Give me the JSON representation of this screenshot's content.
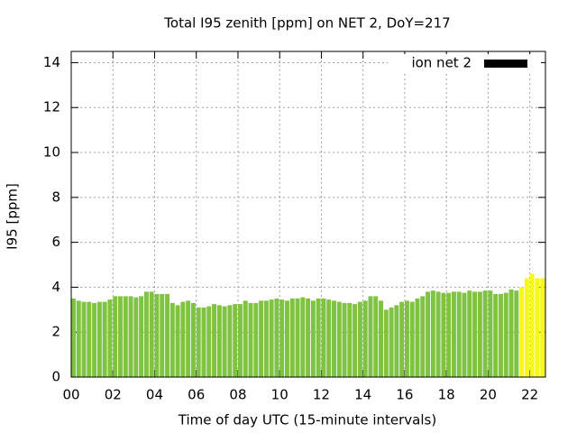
{
  "chart_data": {
    "type": "bar",
    "title": "Total I95 zenith [ppm] on NET 2, DoY=217",
    "xlabel": "Time of day UTC (15-minute intervals)",
    "ylabel": "I95 [ppm]",
    "legend": {
      "label": "ion net 2",
      "color": "#000000",
      "position": "top-right"
    },
    "x": [
      0,
      0.25,
      0.5,
      0.75,
      1,
      1.25,
      1.5,
      1.75,
      2,
      2.25,
      2.5,
      2.75,
      3,
      3.25,
      3.5,
      3.75,
      4,
      4.25,
      4.5,
      4.75,
      5,
      5.25,
      5.5,
      5.75,
      6,
      6.25,
      6.5,
      6.75,
      7,
      7.25,
      7.5,
      7.75,
      8,
      8.25,
      8.5,
      8.75,
      9,
      9.25,
      9.5,
      9.75,
      10,
      10.25,
      10.5,
      10.75,
      11,
      11.25,
      11.5,
      11.75,
      12,
      12.25,
      12.5,
      12.75,
      13,
      13.25,
      13.5,
      13.75,
      14,
      14.25,
      14.5,
      14.75,
      15,
      15.25,
      15.5,
      15.75,
      16,
      16.25,
      16.5,
      16.75,
      17,
      17.25,
      17.5,
      17.75,
      18,
      18.25,
      18.5,
      18.75,
      19,
      19.25,
      19.5,
      19.75,
      20,
      20.25,
      20.5,
      20.75,
      21,
      21.25,
      21.5,
      21.75,
      22,
      22.25,
      22.5
    ],
    "values": [
      3.5,
      3.4,
      3.35,
      3.35,
      3.3,
      3.35,
      3.35,
      3.45,
      3.6,
      3.6,
      3.6,
      3.6,
      3.55,
      3.6,
      3.8,
      3.8,
      3.7,
      3.7,
      3.7,
      3.3,
      3.2,
      3.35,
      3.4,
      3.3,
      3.1,
      3.1,
      3.15,
      3.25,
      3.2,
      3.15,
      3.2,
      3.25,
      3.25,
      3.4,
      3.3,
      3.3,
      3.4,
      3.4,
      3.45,
      3.5,
      3.45,
      3.4,
      3.5,
      3.5,
      3.55,
      3.5,
      3.4,
      3.5,
      3.5,
      3.45,
      3.4,
      3.35,
      3.3,
      3.3,
      3.25,
      3.35,
      3.4,
      3.6,
      3.6,
      3.4,
      3.0,
      3.1,
      3.2,
      3.35,
      3.4,
      3.35,
      3.5,
      3.6,
      3.8,
      3.85,
      3.8,
      3.75,
      3.75,
      3.8,
      3.8,
      3.75,
      3.85,
      3.8,
      3.8,
      3.85,
      3.85,
      3.7,
      3.7,
      3.75,
      3.9,
      3.85,
      4.0,
      4.4,
      4.6,
      4.4,
      4.4
    ],
    "colors": [
      "#80c342",
      "#80c342",
      "#80c342",
      "#80c342",
      "#80c342",
      "#80c342",
      "#80c342",
      "#80c342",
      "#80c342",
      "#80c342",
      "#80c342",
      "#80c342",
      "#80c342",
      "#80c342",
      "#80c342",
      "#80c342",
      "#80c342",
      "#80c342",
      "#80c342",
      "#80c342",
      "#80c342",
      "#80c342",
      "#80c342",
      "#80c342",
      "#80c342",
      "#80c342",
      "#80c342",
      "#80c342",
      "#80c342",
      "#80c342",
      "#80c342",
      "#80c342",
      "#80c342",
      "#80c342",
      "#80c342",
      "#80c342",
      "#80c342",
      "#80c342",
      "#80c342",
      "#80c342",
      "#80c342",
      "#80c342",
      "#80c342",
      "#80c342",
      "#80c342",
      "#80c342",
      "#80c342",
      "#80c342",
      "#80c342",
      "#80c342",
      "#80c342",
      "#80c342",
      "#80c342",
      "#80c342",
      "#80c342",
      "#80c342",
      "#80c342",
      "#80c342",
      "#80c342",
      "#80c342",
      "#80c342",
      "#80c342",
      "#80c342",
      "#80c342",
      "#80c342",
      "#80c342",
      "#80c342",
      "#80c342",
      "#80c342",
      "#80c342",
      "#80c342",
      "#80c342",
      "#80c342",
      "#80c342",
      "#80c342",
      "#80c342",
      "#80c342",
      "#80c342",
      "#80c342",
      "#80c342",
      "#80c342",
      "#80c342",
      "#80c342",
      "#80c342",
      "#80c342",
      "#80c342",
      "#f7f71a",
      "#f7f71a",
      "#f7f71a",
      "#f7f71a",
      "#f7f71a"
    ],
    "xlim": [
      0,
      22.75
    ],
    "xticks": [
      {
        "value": 0,
        "label": "00"
      },
      {
        "value": 2,
        "label": "02"
      },
      {
        "value": 4,
        "label": "04"
      },
      {
        "value": 6,
        "label": "06"
      },
      {
        "value": 8,
        "label": "08"
      },
      {
        "value": 10,
        "label": "10"
      },
      {
        "value": 12,
        "label": "12"
      },
      {
        "value": 14,
        "label": "14"
      },
      {
        "value": 16,
        "label": "16"
      },
      {
        "value": 18,
        "label": "18"
      },
      {
        "value": 20,
        "label": "20"
      },
      {
        "value": 22,
        "label": "22"
      }
    ],
    "ylim": [
      0,
      14.5
    ],
    "yticks": [
      0,
      2,
      4,
      6,
      8,
      10,
      12,
      14
    ],
    "grid": true
  }
}
